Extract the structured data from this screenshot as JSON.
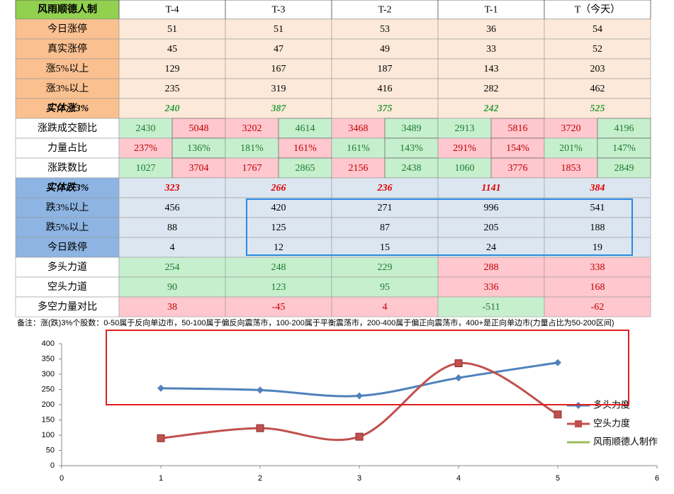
{
  "table": {
    "header": [
      "风雨顺德人制",
      "T-4",
      "T-3",
      "T-2",
      "T-1",
      "T（今天）"
    ],
    "rows": [
      [
        "今日涨停",
        "51",
        "51",
        "53",
        "36",
        "54"
      ],
      [
        "真实涨停",
        "45",
        "47",
        "49",
        "33",
        "52"
      ],
      [
        "涨5%以上",
        "129",
        "167",
        "187",
        "143",
        "203"
      ],
      [
        "涨3%以上",
        "235",
        "319",
        "416",
        "282",
        "462"
      ],
      [
        "实体涨3%",
        "240",
        "387",
        "375",
        "242",
        "525"
      ],
      [
        "涨跌成交额比",
        "2430",
        "5048",
        "3202",
        "4614",
        "3468",
        "3489",
        "2913",
        "5816",
        "3720",
        "4196"
      ],
      [
        "力量占比",
        "237%",
        "136%",
        "181%",
        "161%",
        "161%",
        "143%",
        "291%",
        "154%",
        "201%",
        "147%"
      ],
      [
        "涨跌数比",
        "1027",
        "3704",
        "1767",
        "2865",
        "2156",
        "2438",
        "1060",
        "3776",
        "1853",
        "2849"
      ],
      [
        "实体跌3%",
        "323",
        "266",
        "236",
        "1141",
        "384"
      ],
      [
        "跌3%以上",
        "456",
        "420",
        "271",
        "996",
        "541"
      ],
      [
        "跌5%以上",
        "88",
        "125",
        "87",
        "205",
        "188"
      ],
      [
        "今日跌停",
        "4",
        "12",
        "15",
        "24",
        "19"
      ],
      [
        "多头力道",
        "254",
        "248",
        "229",
        "288",
        "338"
      ],
      [
        "空头力道",
        "90",
        "123",
        "95",
        "336",
        "168"
      ],
      [
        "多空力量对比",
        "38",
        "-45",
        "4",
        "-511",
        "-62"
      ]
    ]
  },
  "note": "备注：涨(跌)3%个股数：0-50属于反向单边市，50-100属于偏反向震荡市，100-200属于平衡震荡市，200-400属于偏正向震荡市，400+是正向单边市(力量占比为50-200区间)",
  "chart_data": {
    "type": "line",
    "x": [
      1,
      2,
      3,
      4,
      5
    ],
    "series": [
      {
        "name": "多头力度",
        "color": "#4f81bd",
        "values": [
          254,
          248,
          229,
          288,
          338
        ]
      },
      {
        "name": "空头力度",
        "color": "#c0504d",
        "values": [
          90,
          123,
          95,
          336,
          168
        ]
      },
      {
        "name": "风雨顺德人制作",
        "color": "#9bbb59",
        "values": [
          null,
          null,
          null,
          null,
          null
        ]
      }
    ],
    "xlim": [
      0,
      6
    ],
    "xticks": [
      0,
      1,
      2,
      3,
      4,
      5,
      6
    ],
    "ylim": [
      0,
      400
    ],
    "yticks": [
      0,
      50,
      100,
      150,
      200,
      250,
      300,
      350,
      400
    ],
    "smooth": true
  }
}
